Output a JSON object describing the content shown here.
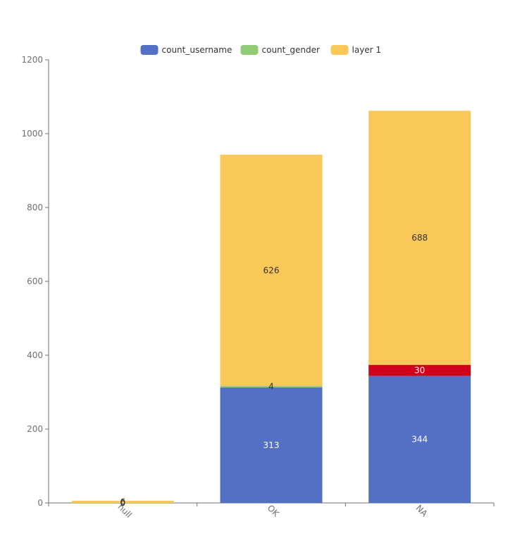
{
  "chart_data": {
    "type": "bar",
    "stacked": true,
    "categories": [
      "null",
      "OK",
      "NA"
    ],
    "series": [
      {
        "name": "count_username",
        "color": "#5470c6",
        "values": [
          0,
          313,
          344
        ]
      },
      {
        "name": "count_gender",
        "color": "#91cc75",
        "values": [
          0,
          4,
          0
        ]
      },
      {
        "name": "",
        "color": "#d0021b",
        "values": [
          0,
          0,
          30
        ]
      },
      {
        "name": "layer 1",
        "color": "#fac858",
        "values": [
          6,
          626,
          688
        ]
      }
    ],
    "data_labels": [
      [
        "0",
        "313",
        "344"
      ],
      [
        "0",
        "4",
        ""
      ],
      [
        "",
        "",
        "30"
      ],
      [
        "6",
        "626",
        "688"
      ]
    ],
    "legend": {
      "items": [
        "count_username",
        "count_gender",
        "layer 1"
      ],
      "position": "top-center"
    },
    "ylim": [
      0,
      1200
    ],
    "yticks": [
      0,
      200,
      400,
      600,
      800,
      1000,
      1200
    ],
    "xlabel": "",
    "ylabel": "",
    "title": "",
    "grid": false
  }
}
